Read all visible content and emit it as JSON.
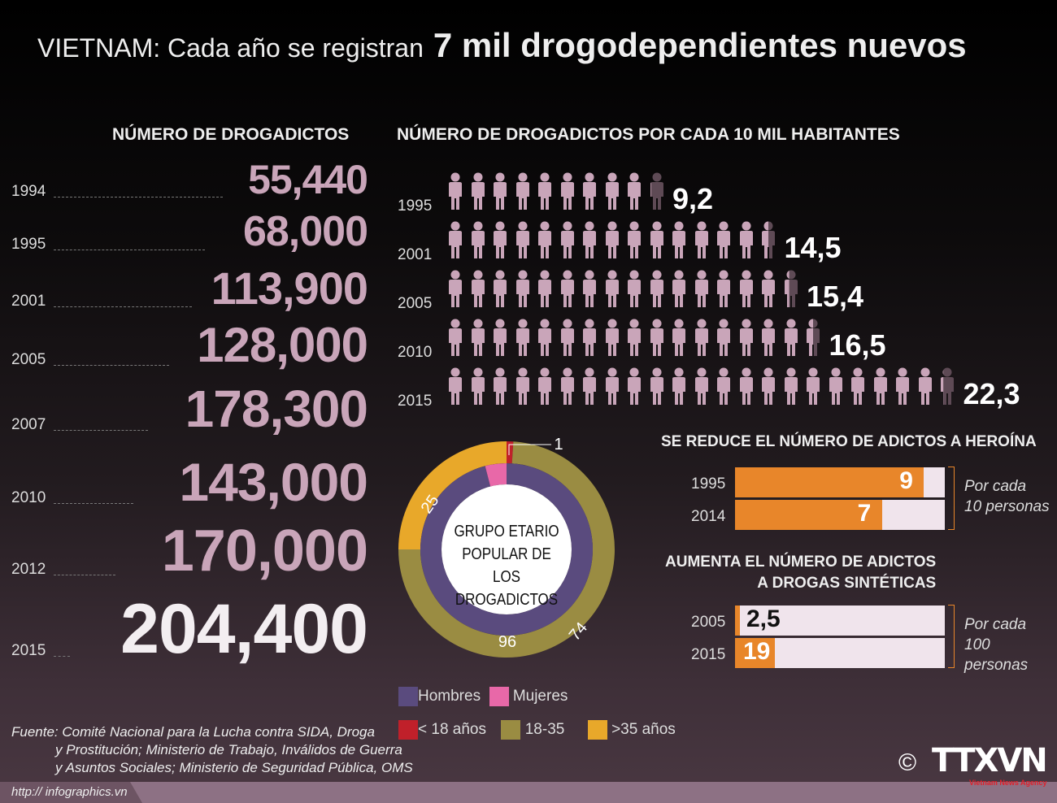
{
  "title": {
    "part1": "VIETNAM: Cada año se registran",
    "part2": "7 mil drogodependientes nuevos"
  },
  "colors": {
    "people": "#c9a5b9",
    "bar": "#e8862a",
    "hombres": "#5a4b7e",
    "mujeres": "#e868a8",
    "under18": "#c0202a",
    "age18_35": "#9a8c42",
    "over35": "#e8a82a"
  },
  "chart_data": [
    {
      "type": "table",
      "title": "NÚMERO DE DROGADICTOS",
      "categories": [
        "1994",
        "1995",
        "2001",
        "2005",
        "2007",
        "2010",
        "2012",
        "2015"
      ],
      "values": [
        55440,
        68000,
        113900,
        128000,
        178300,
        143000,
        170000,
        204400
      ],
      "labels": [
        "55,440",
        "68,000",
        "113,900",
        "128,000",
        "178,300",
        "143,000",
        "170,000",
        "204,400"
      ]
    },
    {
      "type": "bar",
      "title": "NÚMERO DE DROGADICTOS POR CADA 10 MIL HABITANTES",
      "icon": "person-icon",
      "categories": [
        "1995",
        "2001",
        "2005",
        "2010",
        "2015"
      ],
      "values": [
        9.2,
        14.5,
        15.4,
        16.5,
        22.3
      ],
      "labels": [
        "9,2",
        "14,5",
        "15,4",
        "16,5",
        "22,3"
      ]
    },
    {
      "type": "pie",
      "title": "GRUPO ETARIO POPULAR DE LOS DROGADICTOS",
      "rings": [
        {
          "name": "inner",
          "series": [
            {
              "name": "Hombres",
              "value": 96
            },
            {
              "name": "Mujeres",
              "value": 4
            }
          ]
        },
        {
          "name": "outer",
          "series": [
            {
              "name": "< 18 años",
              "value": 1
            },
            {
              "name": "18-35",
              "value": 74
            },
            {
              "name": ">35 años",
              "value": 25
            }
          ]
        }
      ]
    },
    {
      "type": "bar",
      "title": "SE REDUCE EL NÚMERO DE ADICTOS A HEROÍNA",
      "categories": [
        "1995",
        "2014"
      ],
      "values": [
        9,
        7
      ],
      "labels": [
        "9",
        "7"
      ],
      "xlim": [
        0,
        10
      ],
      "note": [
        "Por cada",
        "10 personas"
      ]
    },
    {
      "type": "bar",
      "title": [
        "AUMENTA EL NÚMERO DE ADICTOS",
        "A DROGAS SINTÉTICAS"
      ],
      "categories": [
        "2005",
        "2015"
      ],
      "values": [
        2.5,
        19
      ],
      "labels": [
        "2,5",
        "19"
      ],
      "xlim": [
        0,
        100
      ],
      "note": [
        "Por cada",
        "100 personas"
      ]
    }
  ],
  "legend": {
    "hombres": "Hombres",
    "mujeres": "Mujeres",
    "under18": "< 18 años",
    "age18_35": "18-35",
    "over35": ">35 años"
  },
  "source": [
    "Fuente: Comité Nacional para la Lucha contra SIDA, Droga",
    "y Prostitución; Ministerio de Trabajo, Inválidos de Guerra",
    "y Asuntos Sociales; Ministerio de Seguridad Pública, OMS"
  ],
  "url": "http:// infographics.vn",
  "logo": {
    "copyright": "©",
    "text": "TTXVN",
    "tagline": "Vietnam News Agency"
  }
}
